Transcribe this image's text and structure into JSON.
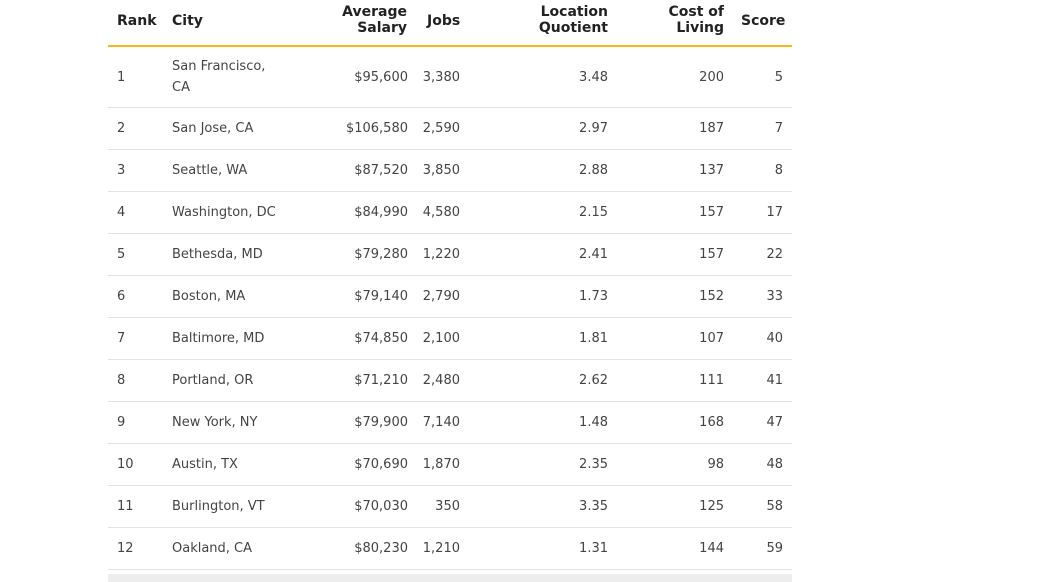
{
  "table": {
    "headers": {
      "rank": "Rank",
      "city": "City",
      "salary": "Average\nSalary",
      "jobs": "Jobs",
      "lq": "Location\nQuotient",
      "col": "Cost of\nLiving",
      "score": "Score"
    },
    "accent_color": "#f5b71a",
    "rows": [
      {
        "rank": "1",
        "city": "San Francisco, CA",
        "salary": "$95,600",
        "jobs": "3,380",
        "lq": "3.48",
        "col": "200",
        "score": "5"
      },
      {
        "rank": "2",
        "city": "San Jose, CA",
        "salary": "$106,580",
        "jobs": "2,590",
        "lq": "2.97",
        "col": "187",
        "score": "7"
      },
      {
        "rank": "3",
        "city": "Seattle, WA",
        "salary": "$87,520",
        "jobs": "3,850",
        "lq": "2.88",
        "col": "137",
        "score": "8"
      },
      {
        "rank": "4",
        "city": "Washington, DC",
        "salary": "$84,990",
        "jobs": "4,580",
        "lq": "2.15",
        "col": "157",
        "score": "17"
      },
      {
        "rank": "5",
        "city": "Bethesda, MD",
        "salary": "$79,280",
        "jobs": "1,220",
        "lq": "2.41",
        "col": "157",
        "score": "22"
      },
      {
        "rank": "6",
        "city": "Boston, MA",
        "salary": "$79,140",
        "jobs": "2,790",
        "lq": "1.73",
        "col": "152",
        "score": "33"
      },
      {
        "rank": "7",
        "city": "Baltimore, MD",
        "salary": "$74,850",
        "jobs": "2,100",
        "lq": "1.81",
        "col": "107",
        "score": "40"
      },
      {
        "rank": "8",
        "city": "Portland, OR",
        "salary": "$71,210",
        "jobs": "2,480",
        "lq": "2.62",
        "col": "111",
        "score": "41"
      },
      {
        "rank": "9",
        "city": "New York, NY",
        "salary": "$79,900",
        "jobs": "7,140",
        "lq": "1.48",
        "col": "168",
        "score": "47"
      },
      {
        "rank": "10",
        "city": "Austin, TX",
        "salary": "$70,690",
        "jobs": "1,870",
        "lq": "2.35",
        "col": "98",
        "score": "48"
      },
      {
        "rank": "11",
        "city": "Burlington, VT",
        "salary": "$70,030",
        "jobs": "350",
        "lq": "3.35",
        "col": "125",
        "score": "58"
      },
      {
        "rank": "12",
        "city": "Oakland, CA",
        "salary": "$80,230",
        "jobs": "1,210",
        "lq": "1.31",
        "col": "144",
        "score": "59"
      }
    ]
  }
}
